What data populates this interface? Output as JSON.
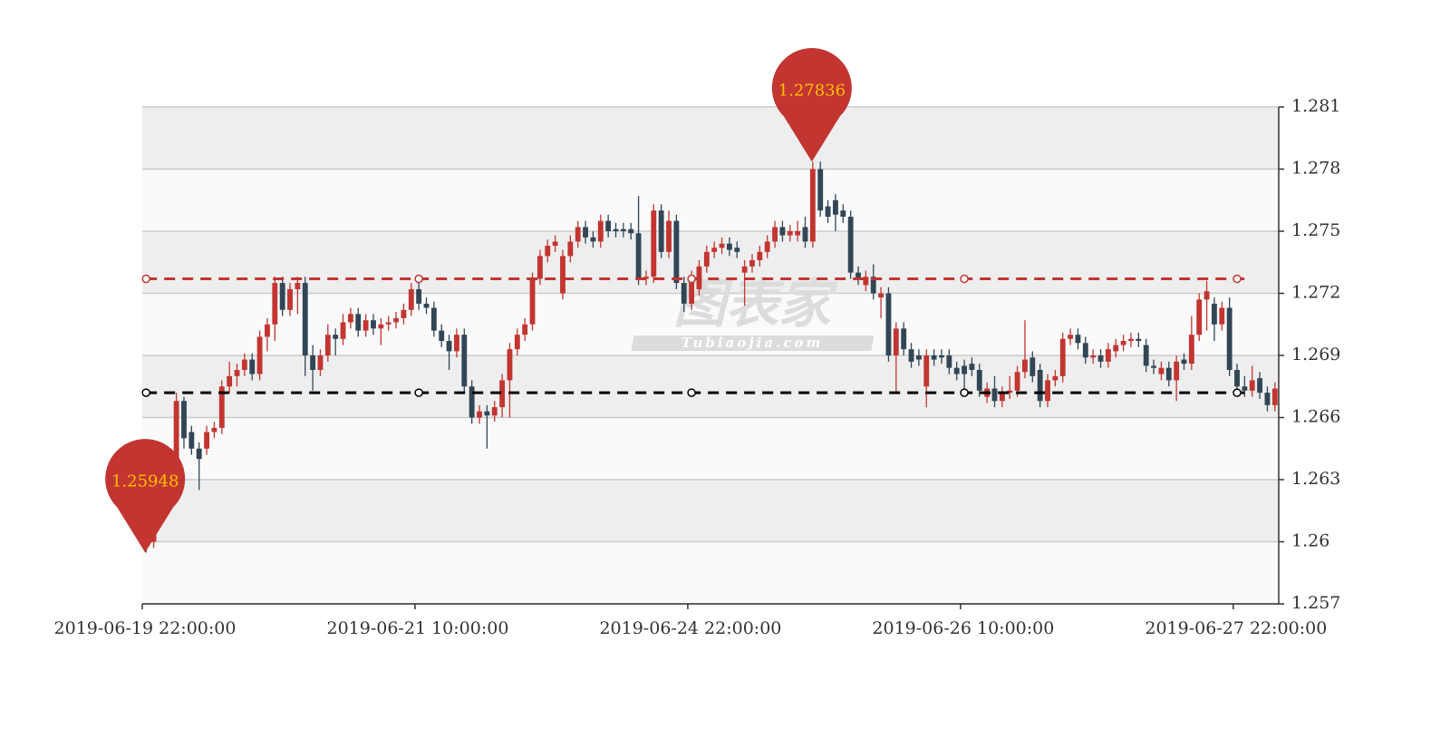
{
  "chart_data": {
    "type": "candlestick",
    "categories": [
      "2019-06-19 22:00:00",
      null,
      null,
      null,
      null,
      null,
      null,
      null,
      null,
      null,
      null,
      null,
      null,
      null,
      null,
      null,
      null,
      null,
      null,
      null,
      null,
      null,
      null,
      null,
      null,
      null,
      null,
      null,
      null,
      null,
      null,
      null,
      null,
      null,
      null,
      null,
      "2019-06-21 10:00:00",
      null,
      null,
      null,
      null,
      null,
      null,
      null,
      null,
      null,
      null,
      null,
      null,
      null,
      null,
      null,
      null,
      null,
      null,
      null,
      null,
      null,
      null,
      null,
      null,
      null,
      null,
      null,
      null,
      null,
      null,
      null,
      null,
      null,
      null,
      null,
      "2019-06-24 22:00:00",
      null,
      null,
      null,
      null,
      null,
      null,
      null,
      null,
      null,
      null,
      null,
      null,
      null,
      null,
      null,
      null,
      null,
      null,
      null,
      null,
      null,
      null,
      null,
      null,
      null,
      null,
      null,
      null,
      null,
      null,
      null,
      null,
      null,
      null,
      null,
      "2019-06-26 10:00:00",
      null,
      null,
      null,
      null,
      null,
      null,
      null,
      null,
      null,
      null,
      null,
      null,
      null,
      null,
      null,
      null,
      null,
      null,
      null,
      null,
      null,
      null,
      null,
      null,
      null,
      null,
      null,
      null,
      null,
      null,
      null,
      null,
      null,
      null,
      null,
      "2019-06-27 22:00:00",
      null,
      null,
      null,
      null,
      null
    ],
    "data": [
      [
        1.2601,
        1.26,
        1.25948,
        1.2604
      ],
      [
        1.26,
        1.2615,
        1.2597,
        1.2618
      ],
      [
        1.2615,
        1.263,
        1.2612,
        1.2633
      ],
      [
        1.263,
        1.2642,
        1.2627,
        1.2645
      ],
      [
        1.264,
        1.2668,
        1.2637,
        1.2672
      ],
      [
        1.2668,
        1.265,
        1.2645,
        1.267
      ],
      [
        1.2653,
        1.2645,
        1.2642,
        1.2656
      ],
      [
        1.2645,
        1.264,
        1.2625,
        1.2648
      ],
      [
        1.2645,
        1.2653,
        1.2642,
        1.2656
      ],
      [
        1.2653,
        1.2655,
        1.265,
        1.2658
      ],
      [
        1.2655,
        1.2675,
        1.2652,
        1.2678
      ],
      [
        1.2675,
        1.268,
        1.2672,
        1.2687
      ],
      [
        1.268,
        1.2683,
        1.2675,
        1.2686
      ],
      [
        1.2683,
        1.2688,
        1.268,
        1.2691
      ],
      [
        1.2688,
        1.2681,
        1.2678,
        1.2691
      ],
      [
        1.2681,
        1.2699,
        1.2678,
        1.2702
      ],
      [
        1.2699,
        1.2705,
        1.2692,
        1.2708
      ],
      [
        1.2705,
        1.2725,
        1.2697,
        1.2728
      ],
      [
        1.2725,
        1.2712,
        1.2709,
        1.2728
      ],
      [
        1.2712,
        1.2722,
        1.2709,
        1.2725
      ],
      [
        1.2722,
        1.2725,
        1.271,
        1.2728
      ],
      [
        1.2725,
        1.269,
        1.268,
        1.2728
      ],
      [
        1.269,
        1.2683,
        1.2673,
        1.2695
      ],
      [
        1.2683,
        1.269,
        1.268,
        1.2693
      ],
      [
        1.269,
        1.27,
        1.2687,
        1.2705
      ],
      [
        1.27,
        1.2698,
        1.269,
        1.2703
      ],
      [
        1.2698,
        1.2706,
        1.2695,
        1.271
      ],
      [
        1.2706,
        1.271,
        1.2703,
        1.2713
      ],
      [
        1.271,
        1.2702,
        1.2699,
        1.2713
      ],
      [
        1.2702,
        1.2707,
        1.2699,
        1.271
      ],
      [
        1.2707,
        1.2703,
        1.27,
        1.271
      ],
      [
        1.2703,
        1.2705,
        1.2695,
        1.2708
      ],
      [
        1.2705,
        1.2706,
        1.2702,
        1.2709
      ],
      [
        1.2706,
        1.2708,
        1.2703,
        1.2711
      ],
      [
        1.2708,
        1.2712,
        1.2705,
        1.2715
      ],
      [
        1.2712,
        1.2722,
        1.2709,
        1.2725
      ],
      [
        1.2722,
        1.2715,
        1.2712,
        1.2727
      ],
      [
        1.2715,
        1.2713,
        1.271,
        1.2718
      ],
      [
        1.2713,
        1.2702,
        1.2699,
        1.2716
      ],
      [
        1.2702,
        1.2697,
        1.2694,
        1.2705
      ],
      [
        1.2697,
        1.2692,
        1.2683,
        1.27
      ],
      [
        1.2692,
        1.27,
        1.2689,
        1.2703
      ],
      [
        1.27,
        1.2675,
        1.2672,
        1.2703
      ],
      [
        1.2675,
        1.266,
        1.2657,
        1.2678
      ],
      [
        1.266,
        1.2663,
        1.2657,
        1.2666
      ],
      [
        1.2663,
        1.2661,
        1.2645,
        1.2666
      ],
      [
        1.2661,
        1.2665,
        1.2658,
        1.2668
      ],
      [
        1.2665,
        1.2678,
        1.266,
        1.2681
      ],
      [
        1.2678,
        1.2693,
        1.266,
        1.2696
      ],
      [
        1.2693,
        1.27,
        1.269,
        1.2703
      ],
      [
        1.27,
        1.2705,
        1.2697,
        1.2708
      ],
      [
        1.2705,
        1.2727,
        1.2702,
        1.273
      ],
      [
        1.2727,
        1.2738,
        1.2724,
        1.2741
      ],
      [
        1.2738,
        1.2743,
        1.2735,
        1.2746
      ],
      [
        1.2743,
        1.2745,
        1.274,
        1.2748
      ],
      [
        1.272,
        1.2738,
        1.2717,
        1.2741
      ],
      [
        1.2738,
        1.2745,
        1.2735,
        1.2748
      ],
      [
        1.2745,
        1.2752,
        1.2742,
        1.2755
      ],
      [
        1.2752,
        1.2747,
        1.2744,
        1.2755
      ],
      [
        1.2747,
        1.2745,
        1.2742,
        1.275
      ],
      [
        1.2745,
        1.2755,
        1.2742,
        1.2758
      ],
      [
        1.2755,
        1.275,
        1.2747,
        1.2758
      ],
      [
        1.2751,
        1.275,
        1.2747,
        1.2754
      ],
      [
        1.2751,
        1.275,
        1.2747,
        1.2754
      ],
      [
        1.2751,
        1.2749,
        1.2746,
        1.2754
      ],
      [
        1.2749,
        1.2727,
        1.2724,
        1.2767
      ],
      [
        1.2727,
        1.2728,
        1.2724,
        1.2731
      ],
      [
        1.2728,
        1.276,
        1.2725,
        1.2763
      ],
      [
        1.276,
        1.274,
        1.2737,
        1.2763
      ],
      [
        1.274,
        1.2755,
        1.2737,
        1.276
      ],
      [
        1.2755,
        1.2725,
        1.2722,
        1.2758
      ],
      [
        1.2725,
        1.2715,
        1.2711,
        1.2728
      ],
      [
        1.2715,
        1.2728,
        1.2712,
        1.2731
      ],
      [
        1.2722,
        1.2733,
        1.2719,
        1.2736
      ],
      [
        1.2733,
        1.274,
        1.273,
        1.2743
      ],
      [
        1.274,
        1.2742,
        1.2737,
        1.2745
      ],
      [
        1.2742,
        1.2744,
        1.2739,
        1.2747
      ],
      [
        1.2744,
        1.2741,
        1.2738,
        1.2747
      ],
      [
        1.2742,
        1.274,
        1.2737,
        1.2745
      ],
      [
        1.273,
        1.2733,
        1.2714,
        1.2736
      ],
      [
        1.2733,
        1.2736,
        1.273,
        1.2739
      ],
      [
        1.2736,
        1.274,
        1.2733,
        1.2743
      ],
      [
        1.274,
        1.2745,
        1.2737,
        1.2748
      ],
      [
        1.2745,
        1.2752,
        1.2742,
        1.2755
      ],
      [
        1.2752,
        1.2748,
        1.2745,
        1.2755
      ],
      [
        1.2748,
        1.275,
        1.2745,
        1.2753
      ],
      [
        1.2748,
        1.275,
        1.2745,
        1.2755
      ],
      [
        1.2752,
        1.2745,
        1.2742,
        1.2757
      ],
      [
        1.2745,
        1.278,
        1.2742,
        1.27836
      ],
      [
        1.278,
        1.276,
        1.2757,
        1.27836
      ],
      [
        1.2762,
        1.2757,
        1.2754,
        1.2765
      ],
      [
        1.2765,
        1.2758,
        1.275,
        1.2768
      ],
      [
        1.276,
        1.2757,
        1.2754,
        1.2763
      ],
      [
        1.2757,
        1.273,
        1.2727,
        1.276
      ],
      [
        1.273,
        1.2727,
        1.2724,
        1.2733
      ],
      [
        1.2724,
        1.2728,
        1.2721,
        1.2731
      ],
      [
        1.2728,
        1.272,
        1.2717,
        1.2734
      ],
      [
        1.2718,
        1.272,
        1.2708,
        1.2723
      ],
      [
        1.272,
        1.269,
        1.2687,
        1.2723
      ],
      [
        1.269,
        1.2703,
        1.2672,
        1.2706
      ],
      [
        1.2703,
        1.2693,
        1.269,
        1.2706
      ],
      [
        1.2693,
        1.2687,
        1.2684,
        1.2696
      ],
      [
        1.269,
        1.2688,
        1.2685,
        1.2693
      ],
      [
        1.2675,
        1.269,
        1.2665,
        1.2693
      ],
      [
        1.269,
        1.2688,
        1.2685,
        1.2693
      ],
      [
        1.269,
        1.2689,
        1.2686,
        1.2693
      ],
      [
        1.269,
        1.2684,
        1.2681,
        1.2693
      ],
      [
        1.2684,
        1.2681,
        1.2678,
        1.2687
      ],
      [
        1.2685,
        1.2681,
        1.2672,
        1.2688
      ],
      [
        1.2686,
        1.2683,
        1.268,
        1.2689
      ],
      [
        1.2683,
        1.2673,
        1.267,
        1.2686
      ],
      [
        1.267,
        1.2674,
        1.2667,
        1.2677
      ],
      [
        1.2674,
        1.2668,
        1.2665,
        1.268
      ],
      [
        1.2668,
        1.2672,
        1.2665,
        1.2675
      ],
      [
        1.2672,
        1.2673,
        1.2669,
        1.268
      ],
      [
        1.2673,
        1.2682,
        1.267,
        1.2685
      ],
      [
        1.2682,
        1.2688,
        1.2679,
        1.2707
      ],
      [
        1.2689,
        1.268,
        1.2677,
        1.2692
      ],
      [
        1.2683,
        1.2668,
        1.2665,
        1.2686
      ],
      [
        1.2668,
        1.2678,
        1.2665,
        1.2681
      ],
      [
        1.2678,
        1.268,
        1.2675,
        1.2683
      ],
      [
        1.268,
        1.2698,
        1.2677,
        1.2701
      ],
      [
        1.2698,
        1.27,
        1.2695,
        1.2703
      ],
      [
        1.27,
        1.2696,
        1.2693,
        1.2703
      ],
      [
        1.2696,
        1.2689,
        1.2686,
        1.2699
      ],
      [
        1.2689,
        1.269,
        1.2686,
        1.2693
      ],
      [
        1.269,
        1.2687,
        1.2684,
        1.2693
      ],
      [
        1.2687,
        1.2693,
        1.2684,
        1.2696
      ],
      [
        1.2692,
        1.2695,
        1.2689,
        1.2698
      ],
      [
        1.2695,
        1.2697,
        1.2692,
        1.27
      ],
      [
        1.2697,
        1.2698,
        1.2694,
        1.2701
      ],
      [
        1.2698,
        1.2697,
        1.2694,
        1.2701
      ],
      [
        1.2695,
        1.2685,
        1.2682,
        1.2698
      ],
      [
        1.2685,
        1.2684,
        1.2681,
        1.2688
      ],
      [
        1.2681,
        1.2684,
        1.2678,
        1.2687
      ],
      [
        1.2684,
        1.2678,
        1.2675,
        1.2687
      ],
      [
        1.2678,
        1.2687,
        1.2668,
        1.269
      ],
      [
        1.2688,
        1.2686,
        1.2683,
        1.2691
      ],
      [
        1.2686,
        1.27,
        1.2683,
        1.2709
      ],
      [
        1.27,
        1.2717,
        1.2697,
        1.272
      ],
      [
        1.2717,
        1.2721,
        1.2702,
        1.2726
      ],
      [
        1.2715,
        1.2705,
        1.2697,
        1.2718
      ],
      [
        1.2705,
        1.2713,
        1.2702,
        1.2716
      ],
      [
        1.2713,
        1.2683,
        1.268,
        1.2718
      ],
      [
        1.2683,
        1.2675,
        1.2672,
        1.2686
      ],
      [
        1.2675,
        1.2673,
        1.267,
        1.268
      ],
      [
        1.2673,
        1.2678,
        1.267,
        1.2685
      ],
      [
        1.2679,
        1.2672,
        1.2669,
        1.2682
      ],
      [
        1.2672,
        1.2666,
        1.2663,
        1.2675
      ],
      [
        1.2666,
        1.2674,
        1.2663,
        1.2677
      ]
    ],
    "up_color": "#c23531",
    "down_color": "#314656",
    "ylim": [
      1.257,
      1.281
    ],
    "yticks": [
      1.257,
      1.26,
      1.263,
      1.266,
      1.269,
      1.272,
      1.275,
      1.278,
      1.281
    ],
    "grid": true,
    "split_area": [
      "#fafafa",
      "#eeeeee"
    ],
    "y_axis_side": "right",
    "marklines": [
      {
        "value": 1.2727,
        "color": "#c23531"
      },
      {
        "value": 1.2672,
        "color": "#000000"
      }
    ],
    "max": 1.27836,
    "min": 1.25948,
    "pin_color": "#c23531",
    "pin_label_color": "#ffc000",
    "watermark": [
      "图表家",
      "Tubiaojia.com"
    ]
  }
}
